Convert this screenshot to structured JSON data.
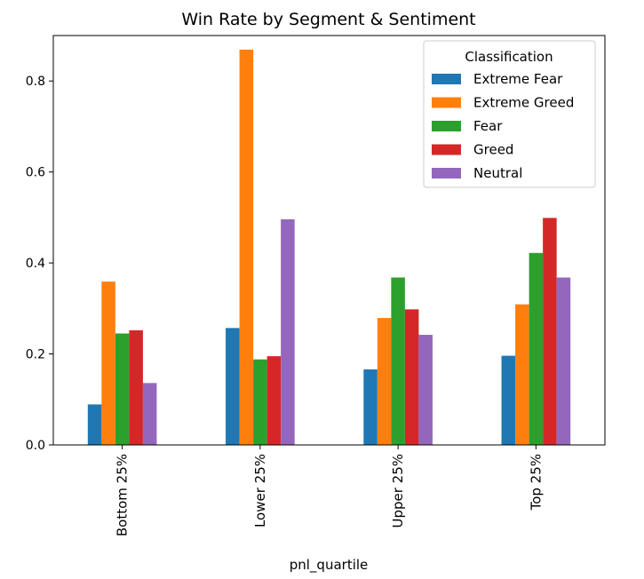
{
  "chart_data": {
    "type": "bar",
    "title": "Win Rate by Segment & Sentiment",
    "xlabel": "pnl_quartile",
    "ylabel": "",
    "categories": [
      "Bottom 25%",
      "Lower 25%",
      "Upper 25%",
      "Top 25%"
    ],
    "ylim": [
      0,
      0.9
    ],
    "yticks": [
      0.0,
      0.2,
      0.4,
      0.6,
      0.8
    ],
    "ytick_labels": [
      "0.0",
      "0.2",
      "0.4",
      "0.6",
      "0.8"
    ],
    "grid": false,
    "legend": {
      "title": "Classification",
      "position": "top-right"
    },
    "series": [
      {
        "name": "Extreme Fear",
        "color": "#1f77b4",
        "values": [
          0.089,
          0.257,
          0.166,
          0.196
        ]
      },
      {
        "name": "Extreme Greed",
        "color": "#ff7f0e",
        "values": [
          0.359,
          0.869,
          0.279,
          0.309
        ]
      },
      {
        "name": "Fear",
        "color": "#2ca02c",
        "values": [
          0.245,
          0.188,
          0.368,
          0.422
        ]
      },
      {
        "name": "Greed",
        "color": "#d62728",
        "values": [
          0.252,
          0.195,
          0.298,
          0.499
        ]
      },
      {
        "name": "Neutral",
        "color": "#9467bd",
        "values": [
          0.136,
          0.496,
          0.242,
          0.368
        ]
      }
    ]
  }
}
